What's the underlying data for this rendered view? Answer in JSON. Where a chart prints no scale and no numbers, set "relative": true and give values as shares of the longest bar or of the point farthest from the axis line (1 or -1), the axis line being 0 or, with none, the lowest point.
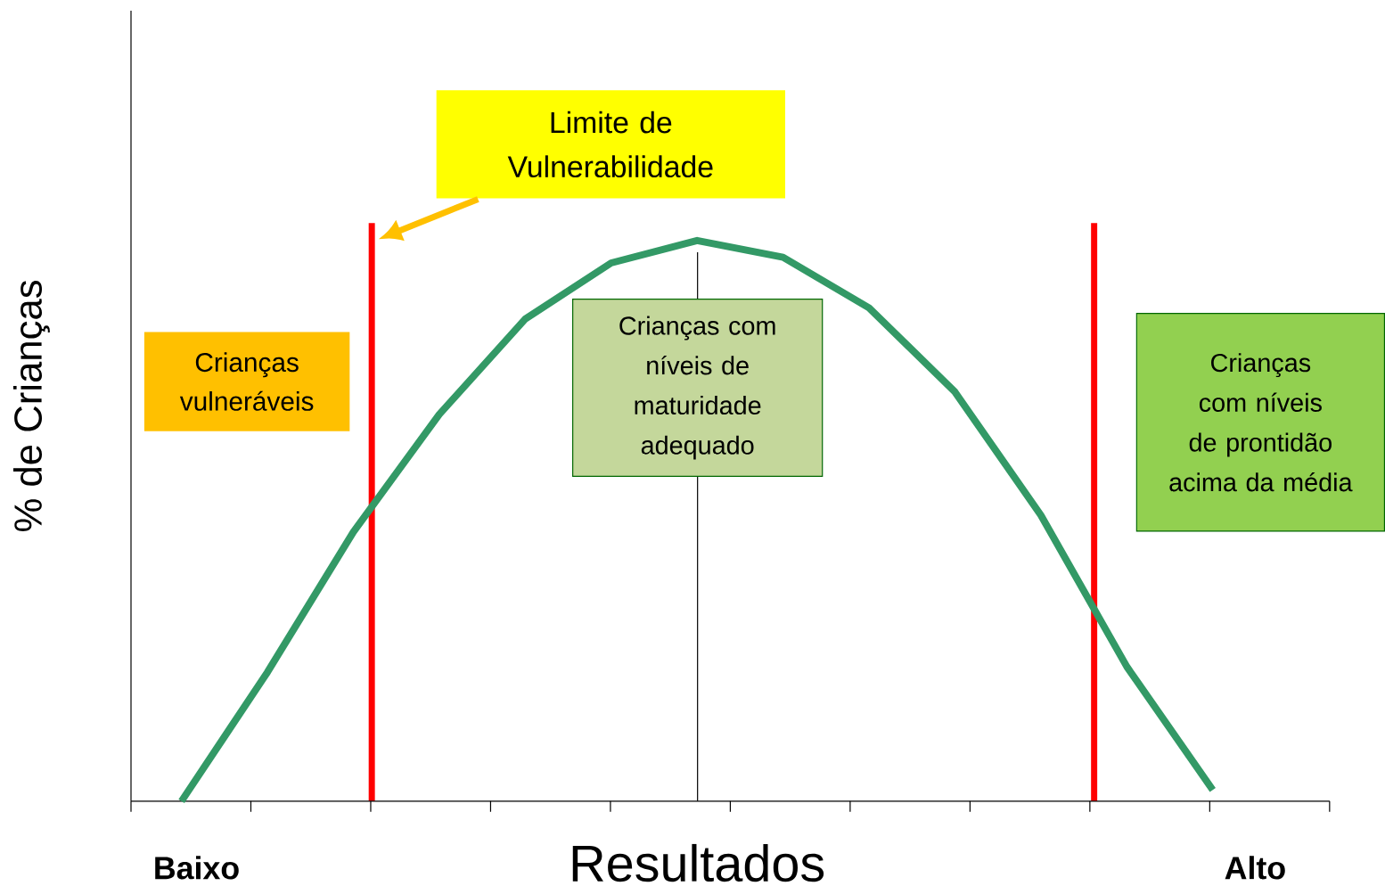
{
  "chart_data": {
    "type": "line",
    "relative": true,
    "xlabel": "Resultados",
    "ylabel": "% de Crianças",
    "categories": [
      null,
      null,
      null,
      null,
      null,
      null,
      null,
      null,
      null,
      null,
      null,
      null,
      null
    ],
    "series": [
      {
        "color": "#339966",
        "values": [
          0,
          0.23,
          0.48,
          0.69,
          0.86,
          0.96,
          1,
          0.97,
          0.88,
          0.73,
          0.51,
          0.24,
          0.02
        ]
      }
    ],
    "annotations": [
      "Limite de Vulnerabilidade",
      "Crianças com níveis de maturidade adequado",
      "Crianças vulneráveis",
      "Crianças com níveis de prontidão acima da média",
      "Baixo",
      "Alto"
    ]
  }
}
